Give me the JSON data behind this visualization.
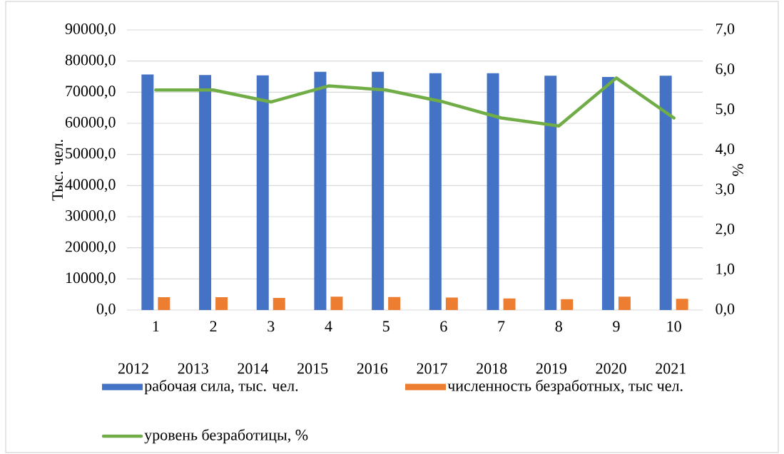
{
  "chart_data": {
    "type": "bar",
    "categories": [
      "1",
      "2",
      "3",
      "4",
      "5",
      "6",
      "7",
      "8",
      "9",
      "10"
    ],
    "series": [
      {
        "name": "рабочая сила, тыс. чел.",
        "color": "#4472c4",
        "values": [
          75700,
          75500,
          75400,
          76600,
          76600,
          76100,
          76100,
          75300,
          74900,
          75300
        ]
      },
      {
        "name": "численность безработных, тыс чел.",
        "color": "#ed7d31",
        "values": [
          4100,
          4100,
          3900,
          4300,
          4200,
          4000,
          3700,
          3500,
          4300,
          3600
        ]
      },
      {
        "name": "уровень безработицы, %",
        "type": "line",
        "axis": "y2",
        "color": "#70ad47",
        "line_style": "solid",
        "values": [
          5.5,
          5.5,
          5.2,
          5.6,
          5.5,
          5.2,
          4.8,
          4.6,
          5.8,
          4.8
        ]
      }
    ],
    "ylabel": "Тыс. чел.",
    "y2label": "%",
    "ylim": [
      0,
      90000
    ],
    "yticks": [
      {
        "value": 0,
        "label": "0,0"
      },
      {
        "value": 10000,
        "label": "10000,0"
      },
      {
        "value": 20000,
        "label": "20000,0"
      },
      {
        "value": 30000,
        "label": "30000,0"
      },
      {
        "value": 40000,
        "label": "40000,0"
      },
      {
        "value": 50000,
        "label": "50000,0"
      },
      {
        "value": 60000,
        "label": "60000,0"
      },
      {
        "value": 70000,
        "label": "70000,0"
      },
      {
        "value": 80000,
        "label": "80000,0"
      },
      {
        "value": 90000,
        "label": "90000,0"
      }
    ],
    "y2lim": [
      0,
      7
    ],
    "y2ticks": [
      {
        "value": 0,
        "label": "0,0"
      },
      {
        "value": 1,
        "label": "1,0"
      },
      {
        "value": 2,
        "label": "2,0"
      },
      {
        "value": 3,
        "label": "3,0"
      },
      {
        "value": 4,
        "label": "4,0"
      },
      {
        "value": 5,
        "label": "5,0"
      },
      {
        "value": 6,
        "label": "6,0"
      },
      {
        "value": 7,
        "label": "7,0"
      }
    ],
    "grid": "y",
    "legend": "bottom",
    "annotations": [
      "2012",
      "2013",
      "2014",
      "2015",
      "2016",
      "2017",
      "2018",
      "2019",
      "2020",
      "2021"
    ]
  }
}
